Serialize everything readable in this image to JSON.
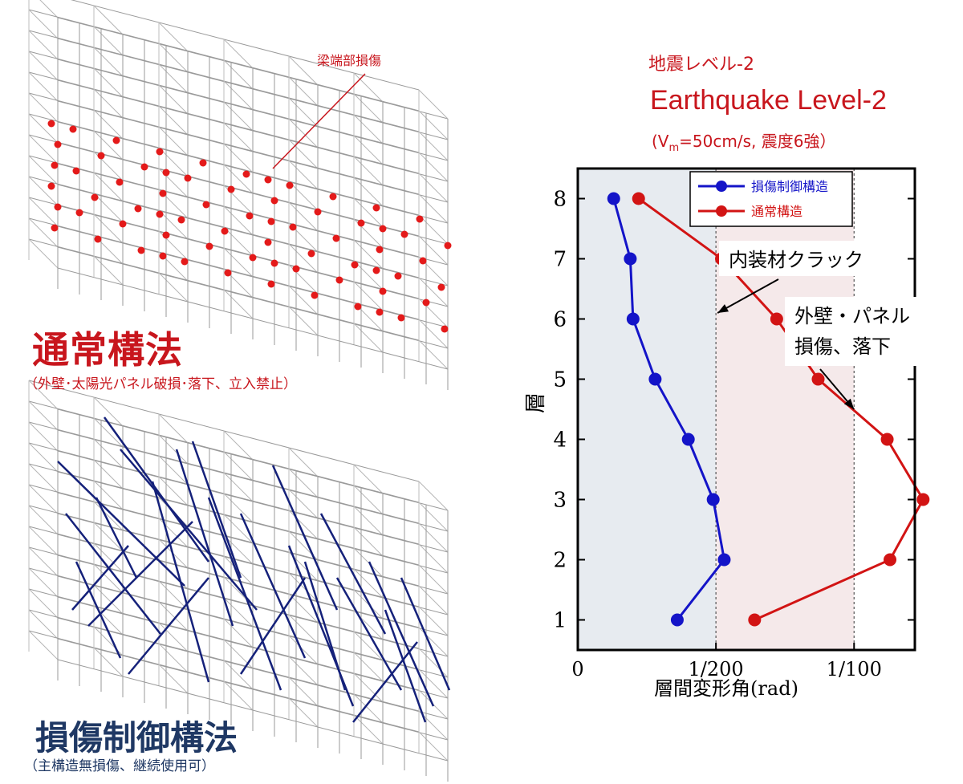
{
  "left": {
    "top_panel": {
      "annotation": "梁端部損傷",
      "title": "通常構法",
      "subtitle": "（外壁･太陽光パネル破損･落下、立入禁止）"
    },
    "bottom_panel": {
      "title": "損傷制御構法",
      "subtitle": "（主構造無損傷、継続使用可）"
    }
  },
  "header": {
    "jp": "地震レベル-2",
    "en": "Earthquake Level-2",
    "sub_pre": "(V",
    "sub_m": "m",
    "sub_post": "=50cm/s, 震度6強）"
  },
  "colors": {
    "red": "#c8161d",
    "navy": "#1f3864",
    "series_blue": "#1414c8",
    "series_red": "#d21414",
    "zone_blue": "#e7ebf0",
    "zone_red": "#f5e9ea"
  },
  "chart_data": {
    "type": "line",
    "xlabel": "層間変形角(rad)",
    "ylabel": "層",
    "x_ticks": [
      {
        "value": 0,
        "label": "0"
      },
      {
        "value": 0.005,
        "label": "1/200"
      },
      {
        "value": 0.01,
        "label": "1/100"
      }
    ],
    "y_ticks": [
      1,
      2,
      3,
      4,
      5,
      6,
      7,
      8
    ],
    "xlim": [
      0,
      0.0122
    ],
    "ylim": [
      0.5,
      8.5
    ],
    "reference_lines": [
      0.005,
      0.01
    ],
    "series": [
      {
        "name": "損傷制御構造",
        "color": "#1414c8",
        "points": [
          [
            0.0036,
            1
          ],
          [
            0.0053,
            2
          ],
          [
            0.0049,
            3
          ],
          [
            0.004,
            4
          ],
          [
            0.0028,
            5
          ],
          [
            0.002,
            6
          ],
          [
            0.0019,
            7
          ],
          [
            0.0013,
            8
          ]
        ]
      },
      {
        "name": "通常構造",
        "color": "#d21414",
        "points": [
          [
            0.0064,
            1
          ],
          [
            0.0113,
            2
          ],
          [
            0.0125,
            3
          ],
          [
            0.0112,
            4
          ],
          [
            0.0087,
            5
          ],
          [
            0.0072,
            6
          ],
          [
            0.0052,
            7
          ],
          [
            0.0022,
            8
          ]
        ]
      }
    ],
    "annotations": [
      {
        "text": "内装材クラック",
        "points_to": [
          0.005,
          6.1
        ]
      },
      {
        "text": "外壁・パネル",
        "text2": "損傷、落下",
        "points_to": [
          0.01,
          4.5
        ]
      }
    ],
    "legend_position": "top-right"
  }
}
